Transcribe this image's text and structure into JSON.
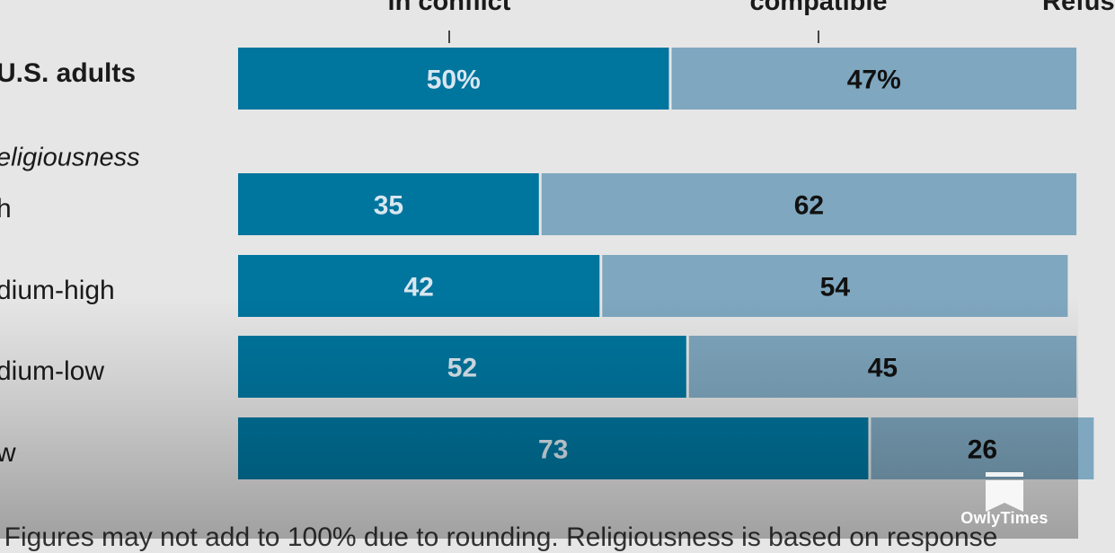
{
  "chart_data": {
    "type": "bar",
    "orientation": "horizontal",
    "stacked": true,
    "column_headers": [
      "in conflict",
      "compatible",
      "Refus"
    ],
    "section_label": "eligiousness",
    "categories": [
      "U.S. adults",
      "h",
      "dium-high",
      "dium-low",
      "w"
    ],
    "series": [
      {
        "name": "in conflict",
        "values": [
          50,
          35,
          42,
          52,
          73
        ],
        "labels": [
          "50%",
          "35",
          "42",
          "52",
          "73"
        ],
        "color": "#00759e"
      },
      {
        "name": "compatible",
        "values": [
          47,
          62,
          54,
          45,
          26
        ],
        "labels": [
          "47%",
          "62",
          "54",
          "45",
          "26"
        ],
        "color": "#7fa7bf"
      }
    ],
    "footnote": ": Figures may not add to 100% due to rounding. Religiousness is based on response"
  },
  "brand": {
    "name": "OwlyTimes",
    "color": "#ffffff"
  }
}
